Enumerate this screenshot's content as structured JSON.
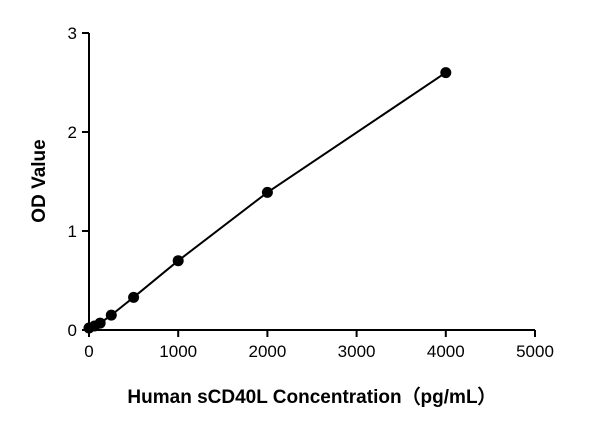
{
  "chart_data": {
    "type": "scatter",
    "title": "",
    "xlabel": "Human sCD40L Concentration（pg/mL）",
    "ylabel": "OD Value",
    "xlim": [
      0,
      5000
    ],
    "ylim": [
      0,
      3
    ],
    "x_ticks": [
      "0",
      "1000",
      "2000",
      "3000",
      "4000",
      "5000"
    ],
    "y_ticks": [
      "0",
      "1",
      "2",
      "3"
    ],
    "grid": false,
    "legend": "none",
    "fit_line": true,
    "series": [
      {
        "x": [
          0,
          62.5,
          125,
          250,
          500,
          1000,
          2000,
          4000
        ],
        "y": [
          0.02,
          0.04,
          0.07,
          0.15,
          0.33,
          0.7,
          1.39,
          2.6
        ]
      }
    ]
  }
}
